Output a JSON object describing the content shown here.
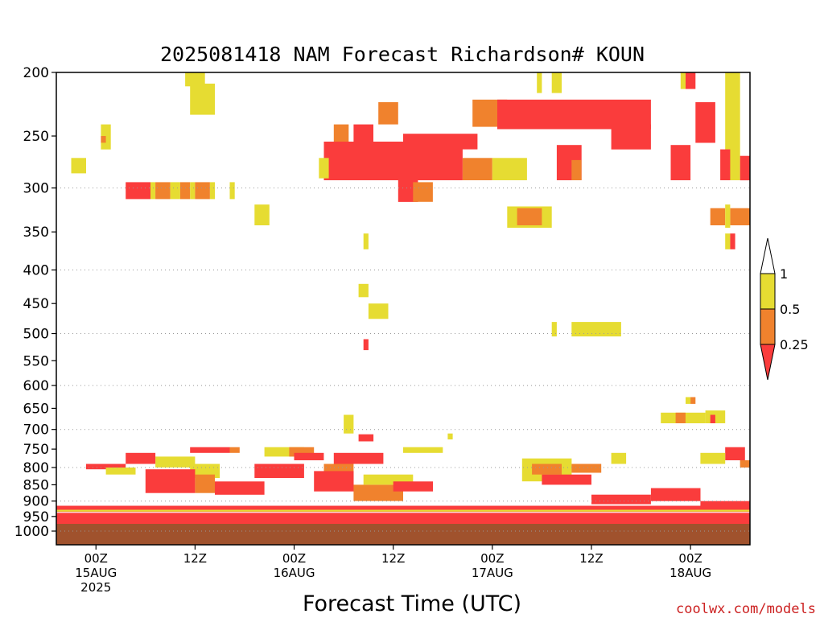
{
  "chart_data": {
    "type": "heatmap",
    "title": "2025081418 NAM Forecast Richardson# KOUN",
    "xlabel": "Forecast Time (UTC)",
    "ylabel": "",
    "y_axis": {
      "scale": "pressure-log",
      "reversed": true,
      "range": [
        1000,
        200
      ],
      "ticks": [
        "200",
        "250",
        "300",
        "350",
        "400",
        "450",
        "500",
        "550",
        "600",
        "650",
        "700",
        "750",
        "800",
        "850",
        "900",
        "950",
        "1000"
      ],
      "dotted_grid_at": [
        300,
        400,
        500,
        600,
        700,
        800,
        900,
        1000
      ]
    },
    "x_axis": {
      "range_hours": [
        -4,
        66
      ],
      "ticks": [
        {
          "hour": 0,
          "line1": "00Z",
          "line2": "15AUG",
          "line3": "2025"
        },
        {
          "hour": 10,
          "line1": "12Z",
          "line2": "",
          "line3": ""
        },
        {
          "hour": 20,
          "line1": "00Z",
          "line2": "16AUG",
          "line3": ""
        },
        {
          "hour": 30,
          "line1": "12Z",
          "line2": "",
          "line3": ""
        },
        {
          "hour": 40,
          "line1": "00Z",
          "line2": "17AUG",
          "line3": ""
        },
        {
          "hour": 50,
          "line1": "12Z",
          "line2": "",
          "line3": ""
        },
        {
          "hour": 60,
          "line1": "00Z",
          "line2": "18AUG",
          "line3": ""
        }
      ]
    },
    "legend": {
      "placement": "right",
      "labels": [
        "1",
        "0.5",
        "0.25"
      ],
      "bins": [
        {
          "range": "> 1",
          "color": "#ffffff"
        },
        {
          "range": "0.5 - 1",
          "color": "#e6dc32"
        },
        {
          "range": "0.25 - 0.5",
          "color": "#f0822d"
        },
        {
          "range": "< 0.25",
          "color": "#fa3c3c"
        }
      ]
    },
    "colors": {
      "yellow": "#e6dc32",
      "orange": "#f0822d",
      "red": "#fa3c3c",
      "ground": "#a0522d"
    },
    "ground_below_hpa": 975,
    "regions": [
      {
        "h0": -2.5,
        "h1": -1,
        "p0": 270,
        "p1": 285,
        "c": "y"
      },
      {
        "h0": 0.5,
        "h1": 1.5,
        "p0": 240,
        "p1": 262,
        "c": "y"
      },
      {
        "h0": 0.5,
        "h1": 1,
        "p0": 250,
        "p1": 256,
        "c": "o"
      },
      {
        "h0": 3,
        "h1": 5.5,
        "p0": 294,
        "p1": 312,
        "c": "r"
      },
      {
        "h0": 5.5,
        "h1": 6,
        "p0": 294,
        "p1": 312,
        "c": "y"
      },
      {
        "h0": 6,
        "h1": 7.5,
        "p0": 294,
        "p1": 312,
        "c": "o"
      },
      {
        "h0": 7.5,
        "h1": 8.5,
        "p0": 294,
        "p1": 312,
        "c": "y"
      },
      {
        "h0": 8.5,
        "h1": 9.5,
        "p0": 294,
        "p1": 312,
        "c": "o"
      },
      {
        "h0": 9.5,
        "h1": 10,
        "p0": 294,
        "p1": 312,
        "c": "y"
      },
      {
        "h0": 10,
        "h1": 11.5,
        "p0": 294,
        "p1": 312,
        "c": "o"
      },
      {
        "h0": 11.5,
        "h1": 12,
        "p0": 294,
        "p1": 312,
        "c": "y"
      },
      {
        "h0": 13.5,
        "h1": 14,
        "p0": 294,
        "p1": 312,
        "c": "y"
      },
      {
        "h0": 9,
        "h1": 11,
        "p0": 200,
        "p1": 210,
        "c": "y"
      },
      {
        "h0": 9.5,
        "h1": 12,
        "p0": 208,
        "p1": 232,
        "c": "y"
      },
      {
        "h0": 16,
        "h1": 17.5,
        "p0": 318,
        "p1": 342,
        "c": "y"
      },
      {
        "h0": 24,
        "h1": 25.5,
        "p0": 240,
        "p1": 262,
        "c": "o"
      },
      {
        "h0": 23,
        "h1": 37,
        "p0": 255,
        "p1": 292,
        "c": "r"
      },
      {
        "h0": 22.5,
        "h1": 23.5,
        "p0": 270,
        "p1": 290,
        "c": "y"
      },
      {
        "h0": 26,
        "h1": 28,
        "p0": 240,
        "p1": 256,
        "c": "r"
      },
      {
        "h0": 28.5,
        "h1": 30.5,
        "p0": 222,
        "p1": 240,
        "c": "o"
      },
      {
        "h0": 31,
        "h1": 38.5,
        "p0": 248,
        "p1": 262,
        "c": "r"
      },
      {
        "h0": 30.5,
        "h1": 32.5,
        "p0": 292,
        "p1": 315,
        "c": "r"
      },
      {
        "h0": 32,
        "h1": 34,
        "p0": 294,
        "p1": 315,
        "c": "o"
      },
      {
        "h0": 37,
        "h1": 40,
        "p0": 270,
        "p1": 292,
        "c": "o"
      },
      {
        "h0": 40,
        "h1": 43.5,
        "p0": 270,
        "p1": 292,
        "c": "y"
      },
      {
        "h0": 38,
        "h1": 41.5,
        "p0": 220,
        "p1": 242,
        "c": "o"
      },
      {
        "h0": 40.5,
        "h1": 56,
        "p0": 220,
        "p1": 244,
        "c": "r"
      },
      {
        "h0": 52,
        "h1": 56,
        "p0": 240,
        "p1": 262,
        "c": "r"
      },
      {
        "h0": 44.5,
        "h1": 45,
        "p0": 200,
        "p1": 215,
        "c": "y"
      },
      {
        "h0": 46,
        "h1": 47,
        "p0": 200,
        "p1": 215,
        "c": "y"
      },
      {
        "h0": 46.5,
        "h1": 49,
        "p0": 258,
        "p1": 292,
        "c": "r"
      },
      {
        "h0": 48,
        "h1": 49,
        "p0": 272,
        "p1": 292,
        "c": "o"
      },
      {
        "h0": 58,
        "h1": 60,
        "p0": 258,
        "p1": 292,
        "c": "r"
      },
      {
        "h0": 60.5,
        "h1": 62.5,
        "p0": 222,
        "p1": 256,
        "c": "r"
      },
      {
        "h0": 59.5,
        "h1": 60.5,
        "p0": 200,
        "p1": 212,
        "c": "r"
      },
      {
        "h0": 59,
        "h1": 59.5,
        "p0": 200,
        "p1": 212,
        "c": "y"
      },
      {
        "h0": 63.5,
        "h1": 65,
        "p0": 200,
        "p1": 292,
        "c": "y"
      },
      {
        "h0": 63,
        "h1": 64,
        "p0": 262,
        "p1": 292,
        "c": "r"
      },
      {
        "h0": 65,
        "h1": 66,
        "p0": 268,
        "p1": 292,
        "c": "r"
      },
      {
        "h0": 41.5,
        "h1": 46,
        "p0": 320,
        "p1": 345,
        "c": "y"
      },
      {
        "h0": 42.5,
        "h1": 45,
        "p0": 322,
        "p1": 342,
        "c": "o"
      },
      {
        "h0": 62,
        "h1": 63.5,
        "p0": 322,
        "p1": 342,
        "c": "o"
      },
      {
        "h0": 64,
        "h1": 66,
        "p0": 322,
        "p1": 342,
        "c": "o"
      },
      {
        "h0": 63.5,
        "h1": 64,
        "p0": 318,
        "p1": 345,
        "c": "y"
      },
      {
        "h0": 63.5,
        "h1": 64,
        "p0": 352,
        "p1": 372,
        "c": "y"
      },
      {
        "h0": 64,
        "h1": 64.5,
        "p0": 352,
        "p1": 372,
        "c": "r"
      },
      {
        "h0": 27,
        "h1": 27.5,
        "p0": 352,
        "p1": 372,
        "c": "y"
      },
      {
        "h0": 26.5,
        "h1": 27.5,
        "p0": 420,
        "p1": 440,
        "c": "y"
      },
      {
        "h0": 27.5,
        "h1": 29.5,
        "p0": 450,
        "p1": 475,
        "c": "y"
      },
      {
        "h0": 27,
        "h1": 27.5,
        "p0": 510,
        "p1": 530,
        "c": "r"
      },
      {
        "h0": 46,
        "h1": 46.5,
        "p0": 480,
        "p1": 505,
        "c": "y"
      },
      {
        "h0": 48,
        "h1": 53,
        "p0": 480,
        "p1": 505,
        "c": "y"
      },
      {
        "h0": 57,
        "h1": 61.5,
        "p0": 660,
        "p1": 685,
        "c": "y"
      },
      {
        "h0": 58.5,
        "h1": 59.5,
        "p0": 660,
        "p1": 685,
        "c": "o"
      },
      {
        "h0": 59.5,
        "h1": 60,
        "p0": 625,
        "p1": 640,
        "c": "y"
      },
      {
        "h0": 60,
        "h1": 60.5,
        "p0": 625,
        "p1": 640,
        "c": "o"
      },
      {
        "h0": 61.5,
        "h1": 63.5,
        "p0": 655,
        "p1": 685,
        "c": "y"
      },
      {
        "h0": 62,
        "h1": 62.5,
        "p0": 665,
        "p1": 685,
        "c": "r"
      },
      {
        "h0": 25,
        "h1": 26,
        "p0": 665,
        "p1": 710,
        "c": "y"
      },
      {
        "h0": 26.5,
        "h1": 28,
        "p0": 712,
        "p1": 730,
        "c": "r"
      },
      {
        "h0": 31,
        "h1": 35,
        "p0": 745,
        "p1": 760,
        "c": "y"
      },
      {
        "h0": 35.5,
        "h1": 36,
        "p0": 710,
        "p1": 725,
        "c": "y"
      },
      {
        "h0": 6,
        "h1": 10,
        "p0": 770,
        "p1": 800,
        "c": "y"
      },
      {
        "h0": 9.5,
        "h1": 12.5,
        "p0": 790,
        "p1": 830,
        "c": "y"
      },
      {
        "h0": 9.5,
        "h1": 13.5,
        "p0": 745,
        "p1": 760,
        "c": "r"
      },
      {
        "h0": 13.5,
        "h1": 14.5,
        "p0": 745,
        "p1": 760,
        "c": "o"
      },
      {
        "h0": 17,
        "h1": 21,
        "p0": 745,
        "p1": 770,
        "c": "y"
      },
      {
        "h0": 19.5,
        "h1": 22,
        "p0": 745,
        "p1": 770,
        "c": "o"
      },
      {
        "h0": 23,
        "h1": 26,
        "p0": 790,
        "p1": 830,
        "c": "o"
      },
      {
        "h0": -1,
        "h1": 3,
        "p0": 790,
        "p1": 805,
        "c": "r"
      },
      {
        "h0": 1,
        "h1": 4,
        "p0": 800,
        "p1": 820,
        "c": "y"
      },
      {
        "h0": 3,
        "h1": 6,
        "p0": 760,
        "p1": 790,
        "c": "r"
      },
      {
        "h0": 5,
        "h1": 10,
        "p0": 805,
        "p1": 875,
        "c": "r"
      },
      {
        "h0": 10,
        "h1": 12,
        "p0": 820,
        "p1": 875,
        "c": "o"
      },
      {
        "h0": 12,
        "h1": 17,
        "p0": 840,
        "p1": 880,
        "c": "r"
      },
      {
        "h0": 16,
        "h1": 21,
        "p0": 790,
        "p1": 830,
        "c": "r"
      },
      {
        "h0": 20,
        "h1": 23,
        "p0": 760,
        "p1": 780,
        "c": "r"
      },
      {
        "h0": 22,
        "h1": 26,
        "p0": 810,
        "p1": 870,
        "c": "r"
      },
      {
        "h0": 24,
        "h1": 29,
        "p0": 760,
        "p1": 790,
        "c": "r"
      },
      {
        "h0": 26,
        "h1": 31,
        "p0": 850,
        "p1": 900,
        "c": "o"
      },
      {
        "h0": 27,
        "h1": 32,
        "p0": 820,
        "p1": 850,
        "c": "y"
      },
      {
        "h0": 30,
        "h1": 34,
        "p0": 840,
        "p1": 870,
        "c": "r"
      },
      {
        "h0": 43,
        "h1": 48,
        "p0": 775,
        "p1": 840,
        "c": "y"
      },
      {
        "h0": 44,
        "h1": 47,
        "p0": 790,
        "p1": 820,
        "c": "o"
      },
      {
        "h0": 45,
        "h1": 50,
        "p0": 820,
        "p1": 850,
        "c": "r"
      },
      {
        "h0": 48,
        "h1": 51,
        "p0": 790,
        "p1": 815,
        "c": "o"
      },
      {
        "h0": 52,
        "h1": 53.5,
        "p0": 760,
        "p1": 790,
        "c": "y"
      },
      {
        "h0": 63.5,
        "h1": 65.5,
        "p0": 745,
        "p1": 780,
        "c": "r"
      },
      {
        "h0": 61,
        "h1": 63.5,
        "p0": 760,
        "p1": 790,
        "c": "y"
      },
      {
        "h0": 65,
        "h1": 66,
        "p0": 780,
        "p1": 800,
        "c": "o"
      },
      {
        "h0": 56,
        "h1": 61,
        "p0": 860,
        "p1": 900,
        "c": "r"
      },
      {
        "h0": 50,
        "h1": 56,
        "p0": 880,
        "p1": 910,
        "c": "r"
      },
      {
        "h0": 61,
        "h1": 66,
        "p0": 900,
        "p1": 930,
        "c": "r"
      },
      {
        "h0": -4,
        "h1": 66,
        "p0": 915,
        "p1": 935,
        "c": "r"
      },
      {
        "h0": -4,
        "h1": 66,
        "p0": 938,
        "p1": 975,
        "c": "r"
      },
      {
        "h0": -4,
        "h1": 66,
        "p0": 928,
        "p1": 934,
        "c": "y"
      }
    ]
  },
  "credit": "coolwx.com/models"
}
